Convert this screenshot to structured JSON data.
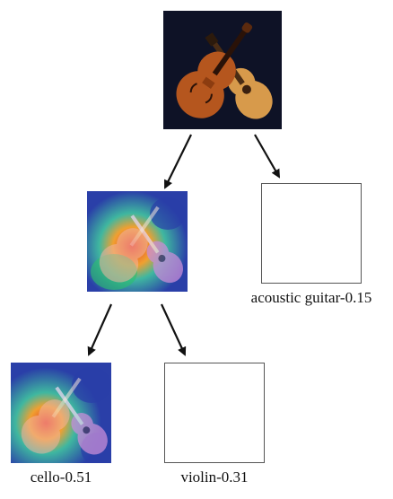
{
  "tree": {
    "root": {
      "name": "root-image"
    },
    "level1": [
      {
        "name": "heatmap-image-1",
        "label": ""
      },
      {
        "name": "empty-slot-1",
        "label": "acoustic guitar-0.15"
      }
    ],
    "level2": [
      {
        "name": "heatmap-image-2",
        "label": "cello-0.51"
      },
      {
        "name": "empty-slot-2",
        "label": "violin-0.31"
      }
    ]
  },
  "colors": {
    "arrow": "#111111",
    "root_background": "#0e1226",
    "cello_wood": "#b5561e",
    "guitar_wood": "#d79a4b",
    "heatmap_low": "#2a3fa8",
    "heatmap_mid": "#3fb7a0",
    "heatmap_high": "#e8382a"
  }
}
